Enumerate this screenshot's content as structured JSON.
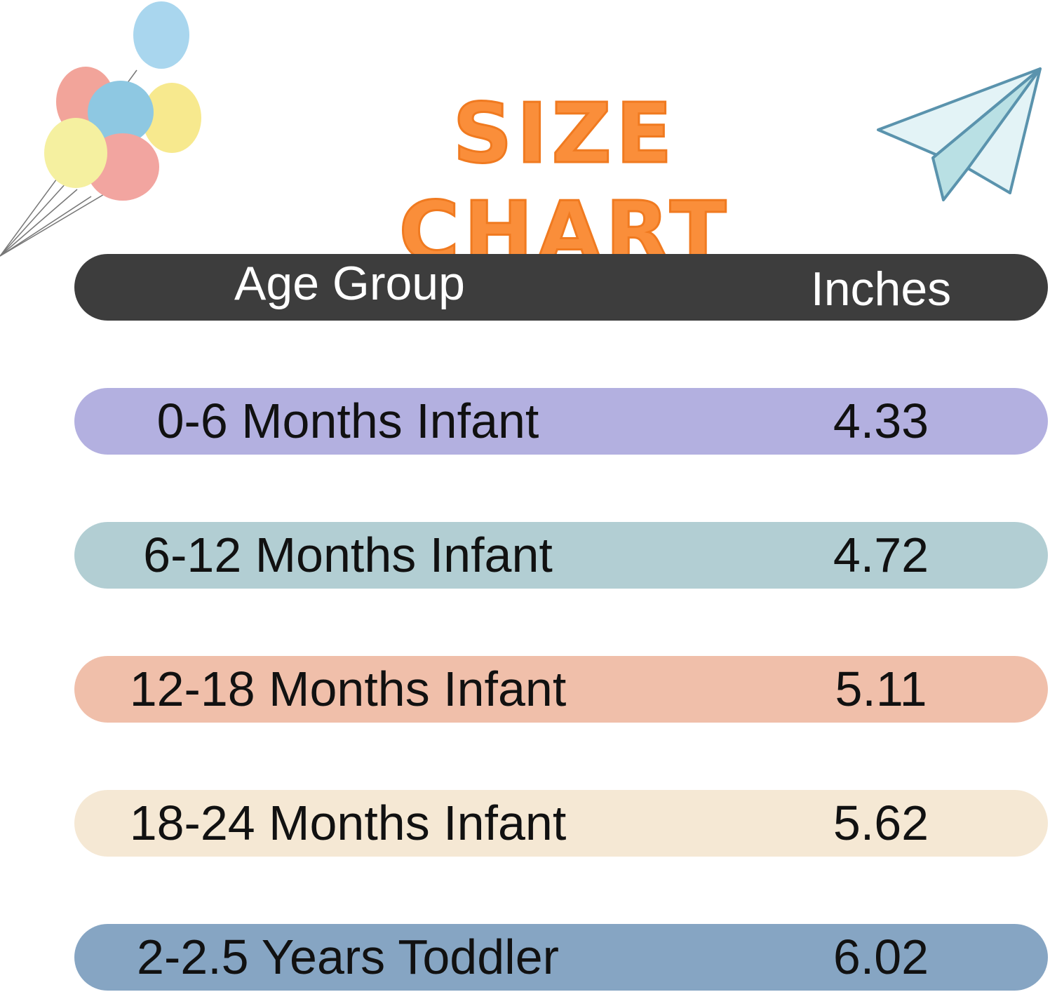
{
  "title": "SIZE CHART",
  "header": {
    "age_group": "Age Group",
    "inches": "Inches"
  },
  "rows": [
    {
      "age_group": "0-6 Months Infant",
      "inches": "4.33",
      "color": "#b3b0e0"
    },
    {
      "age_group": "6-12 Months Infant",
      "inches": "4.72",
      "color": "#b2ced3"
    },
    {
      "age_group": "12-18 Months Infant",
      "inches": "5.11",
      "color": "#f0bfaa"
    },
    {
      "age_group": "18-24 Months Infant",
      "inches": "5.62",
      "color": "#f5e8d4"
    },
    {
      "age_group": "2-2.5 Years Toddler",
      "inches": "6.02",
      "color": "#86a5c3"
    }
  ],
  "colors": {
    "title": "#fa8e3a",
    "header_bg": "#3d3d3d"
  },
  "decorations": [
    "balloons-icon",
    "paper-plane-icon"
  ]
}
